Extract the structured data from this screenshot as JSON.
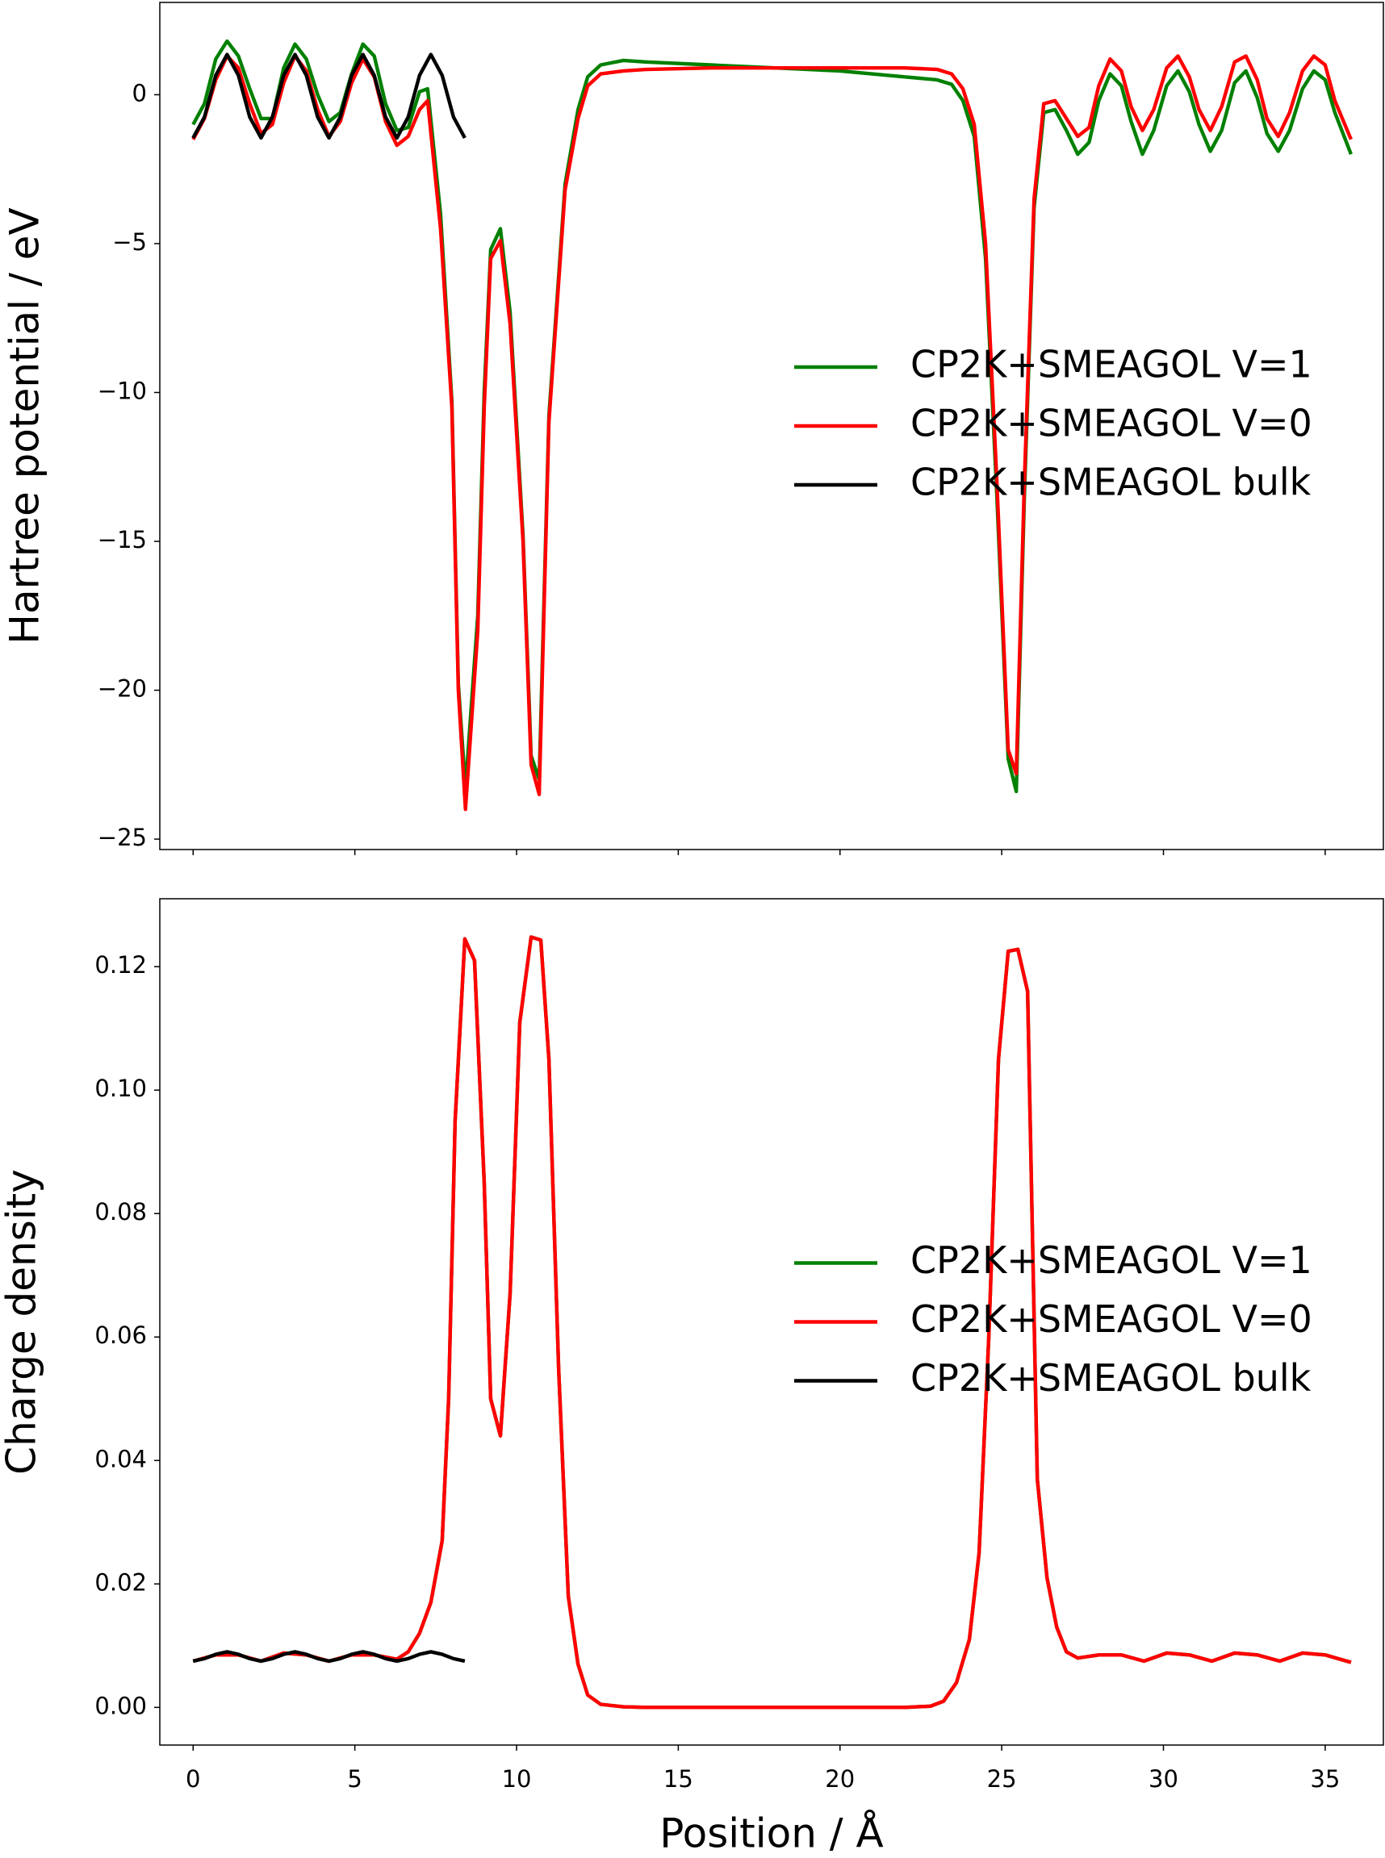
{
  "chart_data": [
    {
      "type": "line",
      "ylabel": "Hartree potential / eV",
      "xlim": [
        -1.03,
        36.8
      ],
      "ylim": [
        -25.35,
        3.1
      ],
      "yticks": [
        {
          "value": -25,
          "label": "−25"
        },
        {
          "value": -20,
          "label": "−20"
        },
        {
          "value": -15,
          "label": "−15"
        },
        {
          "value": -10,
          "label": "−10"
        },
        {
          "value": -5,
          "label": "−5"
        },
        0
      ],
      "legend": "center right",
      "series": [
        {
          "name": "CP2K+SMEAGOL V=1",
          "color": "#008000",
          "x": [
            0,
            0.35,
            0.7,
            1.05,
            1.4,
            1.75,
            2.1,
            2.45,
            2.8,
            3.15,
            3.5,
            3.85,
            4.2,
            4.55,
            4.9,
            5.25,
            5.6,
            5.95,
            6.3,
            6.65,
            7.0,
            7.25,
            7.65,
            8.0,
            8.2,
            8.42,
            8.8,
            9.0,
            9.2,
            9.5,
            9.8,
            10.2,
            10.45,
            10.7,
            11.0,
            11.5,
            11.9,
            12.2,
            12.6,
            13.3,
            14,
            16,
            18,
            20,
            22,
            23,
            23.45,
            23.8,
            24.15,
            24.5,
            24.85,
            25.2,
            25.45,
            25.7,
            26.0,
            26.3,
            26.65,
            27.0,
            27.35,
            27.7,
            28.0,
            28.35,
            28.7,
            29.0,
            29.35,
            29.7,
            30.1,
            30.45,
            30.8,
            31.1,
            31.45,
            31.8,
            32.2,
            32.55,
            32.9,
            33.2,
            33.55,
            33.9,
            34.3,
            34.65,
            35.0,
            35.3,
            35.8
          ],
          "values": [
            -1.0,
            -0.3,
            1.2,
            1.8,
            1.3,
            0.2,
            -0.8,
            -0.8,
            0.9,
            1.7,
            1.2,
            0.0,
            -0.9,
            -0.6,
            0.7,
            1.7,
            1.3,
            -0.3,
            -1.2,
            -1.1,
            0.1,
            0.2,
            -4.0,
            -10.3,
            -19.8,
            -23.3,
            -17.5,
            -10.0,
            -5.2,
            -4.5,
            -7.3,
            -14.8,
            -22.2,
            -23.0,
            -10.8,
            -3.0,
            -0.5,
            0.6,
            1.0,
            1.15,
            1.1,
            1.0,
            0.9,
            0.8,
            0.6,
            0.5,
            0.35,
            -0.2,
            -1.4,
            -5.5,
            -13.5,
            -22.3,
            -23.4,
            -13.5,
            -3.8,
            -0.6,
            -0.5,
            -1.2,
            -2.0,
            -1.6,
            -0.2,
            0.7,
            0.3,
            -0.9,
            -2.0,
            -1.2,
            0.3,
            0.8,
            0.1,
            -1.0,
            -1.9,
            -1.2,
            0.4,
            0.8,
            -0.1,
            -1.3,
            -1.9,
            -1.2,
            0.2,
            0.8,
            0.5,
            -0.6,
            -2.0
          ]
        },
        {
          "name": "CP2K+SMEAGOL V=0",
          "color": "#ff0000",
          "x": [
            0,
            0.35,
            0.7,
            1.05,
            1.4,
            1.75,
            2.1,
            2.45,
            2.8,
            3.15,
            3.5,
            3.85,
            4.2,
            4.55,
            4.9,
            5.25,
            5.6,
            5.95,
            6.3,
            6.65,
            7.0,
            7.25,
            7.65,
            8.0,
            8.2,
            8.42,
            8.8,
            9.0,
            9.2,
            9.5,
            9.8,
            10.2,
            10.45,
            10.7,
            11.0,
            11.5,
            11.9,
            12.2,
            12.6,
            13.3,
            14,
            16,
            18,
            20,
            22,
            23,
            23.45,
            23.8,
            24.15,
            24.5,
            24.85,
            25.2,
            25.45,
            25.7,
            26.0,
            26.3,
            26.65,
            27.0,
            27.35,
            27.7,
            28.0,
            28.35,
            28.7,
            29.0,
            29.35,
            29.7,
            30.1,
            30.45,
            30.8,
            31.1,
            31.45,
            31.8,
            32.2,
            32.55,
            32.9,
            33.2,
            33.55,
            33.9,
            34.3,
            34.65,
            35.0,
            35.3,
            35.8
          ],
          "values": [
            -1.5,
            -0.8,
            0.5,
            1.3,
            0.9,
            -0.3,
            -1.3,
            -1.0,
            0.4,
            1.3,
            0.8,
            -0.5,
            -1.4,
            -0.9,
            0.4,
            1.2,
            0.6,
            -0.9,
            -1.7,
            -1.4,
            -0.5,
            -0.2,
            -4.5,
            -10.5,
            -20,
            -24,
            -18,
            -10.5,
            -5.5,
            -4.9,
            -7.7,
            -15,
            -22.5,
            -23.5,
            -11,
            -3.2,
            -0.8,
            0.3,
            0.7,
            0.8,
            0.85,
            0.9,
            0.9,
            0.9,
            0.9,
            0.85,
            0.7,
            0.2,
            -1.0,
            -5.0,
            -13,
            -22,
            -22.8,
            -13,
            -3.5,
            -0.3,
            -0.2,
            -0.8,
            -1.4,
            -1.1,
            0.3,
            1.2,
            0.8,
            -0.4,
            -1.2,
            -0.5,
            0.9,
            1.3,
            0.6,
            -0.5,
            -1.2,
            -0.4,
            1.1,
            1.3,
            0.5,
            -0.8,
            -1.4,
            -0.6,
            0.8,
            1.3,
            1.0,
            -0.2,
            -1.5
          ]
        },
        {
          "name": "CP2K+SMEAGOL bulk",
          "color": "#000000",
          "x": [
            0,
            0.35,
            0.7,
            1.05,
            1.4,
            1.75,
            2.1,
            2.45,
            2.8,
            3.15,
            3.5,
            3.85,
            4.2,
            4.55,
            4.9,
            5.25,
            5.6,
            5.95,
            6.3,
            6.65,
            7.0,
            7.35,
            7.7,
            8.05,
            8.4
          ],
          "values": [
            -1.45,
            -0.75,
            0.65,
            1.35,
            0.65,
            -0.75,
            -1.45,
            -0.75,
            0.65,
            1.35,
            0.65,
            -0.75,
            -1.45,
            -0.75,
            0.65,
            1.35,
            0.65,
            -0.75,
            -1.45,
            -0.75,
            0.65,
            1.35,
            0.65,
            -0.75,
            -1.45
          ]
        }
      ]
    },
    {
      "type": "line",
      "ylabel": "Charge density",
      "xlabel": "Position / Å",
      "xlim": [
        -1.03,
        36.8
      ],
      "ylim": [
        -0.0061,
        0.131
      ],
      "xticks": [
        0,
        5,
        10,
        15,
        20,
        25,
        30,
        35
      ],
      "yticks": [
        {
          "value": 0,
          "label": "0.00"
        },
        0.02,
        0.04,
        0.06,
        0.08,
        {
          "value": 0.1,
          "label": "0.10"
        },
        0.12
      ],
      "legend": "center right",
      "series": [
        {
          "name": "CP2K+SMEAGOL V=1",
          "color": "#008000",
          "x": [
            0,
            0.7,
            1.4,
            2.1,
            2.8,
            3.5,
            4.2,
            4.9,
            5.6,
            6.3,
            6.65,
            7.0,
            7.35,
            7.7,
            7.9,
            8.1,
            8.4,
            8.7,
            9.0,
            9.2,
            9.5,
            9.8,
            10.1,
            10.45,
            10.75,
            11.0,
            11.3,
            11.6,
            11.9,
            12.2,
            12.6,
            13.3,
            14,
            18,
            22,
            22.8,
            23.2,
            23.6,
            24.0,
            24.3,
            24.6,
            24.9,
            25.2,
            25.5,
            25.8,
            26.1,
            26.4,
            26.7,
            27.0,
            27.35,
            28.0,
            28.7,
            29.4,
            30.1,
            30.8,
            31.5,
            32.2,
            32.9,
            33.6,
            34.3,
            35.0,
            35.8
          ],
          "values": [
            0.0075,
            0.0085,
            0.0085,
            0.0075,
            0.0088,
            0.0085,
            0.0075,
            0.0085,
            0.0085,
            0.0078,
            0.009,
            0.012,
            0.017,
            0.027,
            0.05,
            0.095,
            0.1245,
            0.121,
            0.085,
            0.05,
            0.044,
            0.067,
            0.111,
            0.1248,
            0.1243,
            0.105,
            0.055,
            0.018,
            0.007,
            0.002,
            0.0005,
            0.0001,
            0,
            0,
            0,
            0.0002,
            0.001,
            0.004,
            0.011,
            0.025,
            0.06,
            0.105,
            0.1225,
            0.1228,
            0.116,
            0.037,
            0.021,
            0.013,
            0.009,
            0.008,
            0.0085,
            0.0085,
            0.0075,
            0.0088,
            0.0085,
            0.0075,
            0.0088,
            0.0085,
            0.0075,
            0.0088,
            0.0085,
            0.0073
          ]
        },
        {
          "name": "CP2K+SMEAGOL V=0",
          "color": "#ff0000",
          "x": [
            0,
            0.7,
            1.4,
            2.1,
            2.8,
            3.5,
            4.2,
            4.9,
            5.6,
            6.3,
            6.65,
            7.0,
            7.35,
            7.7,
            7.9,
            8.1,
            8.4,
            8.7,
            9.0,
            9.2,
            9.5,
            9.8,
            10.1,
            10.45,
            10.75,
            11.0,
            11.3,
            11.6,
            11.9,
            12.2,
            12.6,
            13.3,
            14,
            18,
            22,
            22.8,
            23.2,
            23.6,
            24.0,
            24.3,
            24.6,
            24.9,
            25.2,
            25.5,
            25.8,
            26.1,
            26.4,
            26.7,
            27.0,
            27.35,
            28.0,
            28.7,
            29.4,
            30.1,
            30.8,
            31.5,
            32.2,
            32.9,
            33.6,
            34.3,
            35.0,
            35.8
          ],
          "values": [
            0.0075,
            0.0085,
            0.0085,
            0.0075,
            0.0088,
            0.0085,
            0.0075,
            0.0085,
            0.0085,
            0.0078,
            0.009,
            0.012,
            0.017,
            0.027,
            0.05,
            0.095,
            0.1245,
            0.121,
            0.085,
            0.05,
            0.044,
            0.067,
            0.111,
            0.1248,
            0.1243,
            0.105,
            0.055,
            0.018,
            0.007,
            0.002,
            0.0005,
            0.0001,
            0,
            0,
            0,
            0.0002,
            0.001,
            0.004,
            0.011,
            0.025,
            0.06,
            0.105,
            0.1225,
            0.1228,
            0.116,
            0.037,
            0.021,
            0.013,
            0.009,
            0.008,
            0.0085,
            0.0085,
            0.0075,
            0.0088,
            0.0085,
            0.0075,
            0.0088,
            0.0085,
            0.0075,
            0.0088,
            0.0085,
            0.0073
          ]
        },
        {
          "name": "CP2K+SMEAGOL bulk",
          "color": "#000000",
          "x": [
            0,
            0.35,
            0.7,
            1.05,
            1.4,
            1.75,
            2.1,
            2.45,
            2.8,
            3.15,
            3.5,
            3.85,
            4.2,
            4.55,
            4.9,
            5.25,
            5.6,
            5.95,
            6.3,
            6.65,
            7.0,
            7.35,
            7.7,
            8.05,
            8.4
          ],
          "values": [
            0.0075,
            0.0079,
            0.0086,
            0.009,
            0.0086,
            0.0079,
            0.0075,
            0.0079,
            0.0086,
            0.009,
            0.0086,
            0.0079,
            0.0075,
            0.0079,
            0.0086,
            0.009,
            0.0086,
            0.0079,
            0.0075,
            0.0079,
            0.0086,
            0.009,
            0.0086,
            0.0079,
            0.0075
          ]
        }
      ]
    }
  ]
}
